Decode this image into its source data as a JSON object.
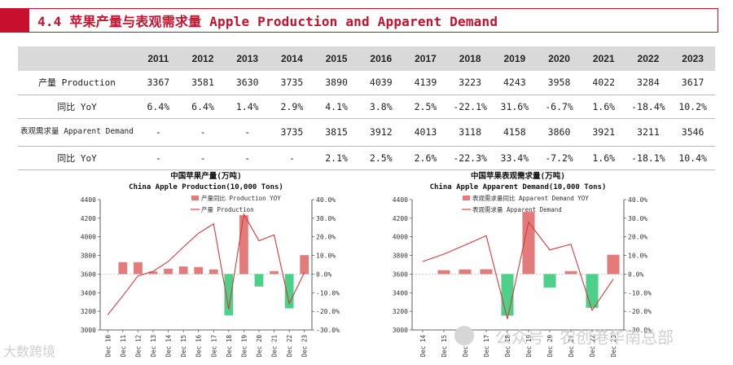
{
  "header": {
    "title": "4.4 苹果产量与表观需求量 Apple Production and Apparent Demand"
  },
  "table": {
    "years": [
      "2011",
      "2012",
      "2013",
      "2014",
      "2015",
      "2016",
      "2017",
      "2018",
      "2019",
      "2020",
      "2021",
      "2022",
      "2023"
    ],
    "rows": [
      {
        "label": "产量 Production",
        "values": [
          "3367",
          "3581",
          "3630",
          "3735",
          "3890",
          "4039",
          "4139",
          "3223",
          "4243",
          "3958",
          "4022",
          "3284",
          "3617"
        ]
      },
      {
        "label": "同比 YoY",
        "values": [
          "6.4%",
          "6.4%",
          "1.4%",
          "2.9%",
          "4.1%",
          "3.8%",
          "2.5%",
          "-22.1%",
          "31.6%",
          "-6.7%",
          "1.6%",
          "-18.4%",
          "10.2%"
        ]
      },
      {
        "label": "表观需求量 Apparent Demand",
        "values": [
          "-",
          "-",
          "-",
          "3735",
          "3815",
          "3912",
          "4013",
          "3118",
          "4158",
          "3860",
          "3921",
          "3211",
          "3546"
        ]
      },
      {
        "label": "同比 YoY",
        "values": [
          "-",
          "-",
          "-",
          "-",
          "2.1%",
          "2.5%",
          "2.6%",
          "-22.3%",
          "33.4%",
          "-7.2%",
          "1.6%",
          "-18.1%",
          "10.4%"
        ]
      }
    ]
  },
  "chart_data": [
    {
      "type": "bar",
      "title": "中国苹果产量(万吨)",
      "subtitle": "China Apple Production(10,000 Tons)",
      "categories": [
        "Dec 10",
        "Dec 11",
        "Dec 12",
        "Dec 13",
        "Dec 14",
        "Dec 15",
        "Dec 16",
        "Dec 17",
        "Dec 18",
        "Dec 19",
        "Dec 20",
        "Dec 21",
        "Dec 22",
        "Dec 23"
      ],
      "series": [
        {
          "name": "产量同比 Production YOY",
          "kind": "bar",
          "axis": "right",
          "values": [
            null,
            6.4,
            6.4,
            1.4,
            2.9,
            4.1,
            3.8,
            2.5,
            -22.1,
            31.6,
            -6.7,
            1.6,
            -18.4,
            10.2
          ]
        },
        {
          "name": "产量 Production",
          "kind": "line",
          "axis": "left",
          "values": [
            3164,
            3367,
            3581,
            3630,
            3735,
            3890,
            4039,
            4139,
            3223,
            4243,
            3958,
            4022,
            3284,
            3617
          ]
        }
      ],
      "ylim_left": [
        3000,
        4400
      ],
      "yticks_left": [
        "3000",
        "3200",
        "3400",
        "3600",
        "3800",
        "4000",
        "4200",
        "4400"
      ],
      "ylim_right": [
        -30,
        40
      ],
      "yticks_right": [
        "-30.0%",
        "-20.0%",
        "-10.0%",
        "0.0%",
        "10.0%",
        "20.0%",
        "30.0%",
        "40.0%"
      ],
      "colors": {
        "bar_pos": "#e47b7b",
        "bar_neg": "#4fd08a",
        "line": "#d23a3a"
      }
    },
    {
      "type": "bar",
      "title": "中国苹果表观需求量(万吨)",
      "subtitle": "China Apple Apparent Demand(10,000 Tons)",
      "categories": [
        "Dec 14",
        "Dec 15",
        "Dec 16",
        "Dec 17",
        "Dec 18",
        "Dec 19",
        "Dec 20",
        "Dec 21",
        "Dec 22",
        "Dec 23"
      ],
      "series": [
        {
          "name": "表观需求量同比 Apparent Demand YOY",
          "kind": "bar",
          "axis": "right",
          "values": [
            null,
            2.1,
            2.5,
            2.6,
            -22.3,
            33.4,
            -7.2,
            1.6,
            -18.1,
            10.4
          ]
        },
        {
          "name": "表观需求量 Apparent Demand",
          "kind": "line",
          "axis": "left",
          "values": [
            3735,
            3815,
            3912,
            4013,
            3118,
            4158,
            3860,
            3921,
            3211,
            3546
          ]
        }
      ],
      "ylim_left": [
        3000,
        4400
      ],
      "yticks_left": [
        "3000",
        "3200",
        "3400",
        "3600",
        "3800",
        "4000",
        "4200",
        "4400"
      ],
      "ylim_right": [
        -30,
        40
      ],
      "yticks_right": [
        "-30.0%",
        "-20.0%",
        "-10.0%",
        "0.0%",
        "10.0%",
        "20.0%",
        "30.0%",
        "40.0%"
      ],
      "colors": {
        "bar_pos": "#e47b7b",
        "bar_neg": "#4fd08a",
        "line": "#d23a3a"
      }
    }
  ],
  "watermark": {
    "text": "公众号 · 农创港华南总部"
  },
  "logo": {
    "text": "大数跨境"
  }
}
